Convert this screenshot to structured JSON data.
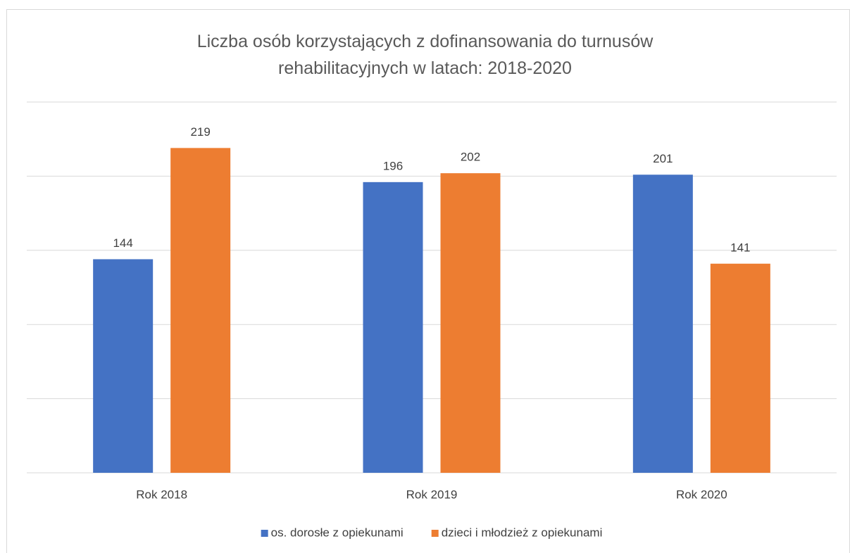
{
  "chart_data": {
    "type": "bar",
    "title": "Liczba osób korzystających z dofinansowania do turnusów rehabilitacyjnych w latach: 2018-2020",
    "categories": [
      "Rok 2018",
      "Rok 2019",
      "Rok 2020"
    ],
    "series": [
      {
        "name": "os. dorosłe z opiekunami",
        "color": "#4472c4",
        "values": [
          144,
          196,
          201
        ]
      },
      {
        "name": "dzieci i młodzież z opiekunami",
        "color": "#ed7d31",
        "values": [
          219,
          202,
          141
        ]
      }
    ],
    "ylim": [
      0,
      250
    ],
    "yticks": [
      0,
      50,
      100,
      150,
      200,
      250
    ],
    "grid": true,
    "legend": "bottom"
  }
}
